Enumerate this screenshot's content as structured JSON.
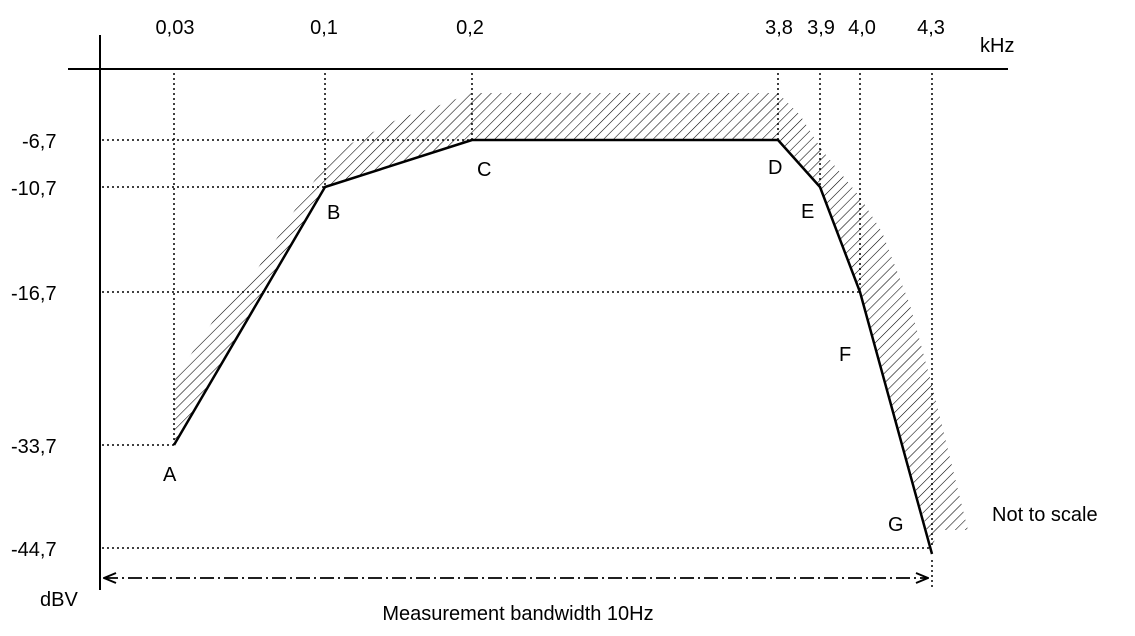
{
  "diagram": {
    "x_unit": "kHz",
    "y_unit": "dBV",
    "note": "Not to scale",
    "bandwidth_label": "Measurement bandwidth 10Hz",
    "x_ticks": [
      "0,03",
      "0,1",
      "0,2",
      "3,8",
      "3,9",
      "4,0",
      "4,3"
    ],
    "y_ticks": [
      "-6,7",
      "-10,7",
      "-16,7",
      "-33,7",
      "-44,7"
    ],
    "points": [
      {
        "label": "A",
        "freq": "0,03",
        "level": "-33,7"
      },
      {
        "label": "B",
        "freq": "0,1",
        "level": "-10,7"
      },
      {
        "label": "C",
        "freq": "0,2",
        "level": "-6,7"
      },
      {
        "label": "D",
        "freq": "3,8",
        "level": "-6,7"
      },
      {
        "label": "E",
        "freq": "3,9",
        "level": "-10,7"
      },
      {
        "label": "F",
        "freq": "4,0",
        "level": "-16,7"
      },
      {
        "label": "G",
        "freq": "4,3",
        "level": "-44,7"
      }
    ]
  }
}
